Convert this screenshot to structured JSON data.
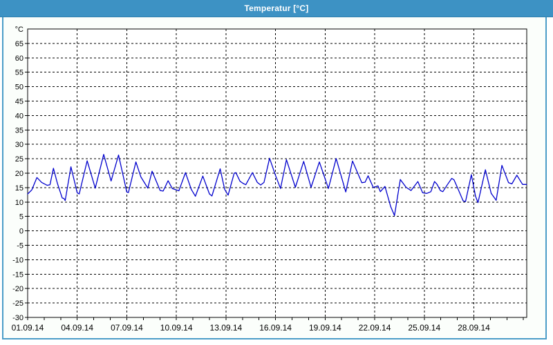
{
  "window": {
    "title": "Temperatur [°C]"
  },
  "colors": {
    "titlebar": "#3d92c4",
    "frame_border": "#4a9cc8",
    "content_background": "#fbfefb",
    "plot_background": "#ffffff",
    "grid": "#000000",
    "axis": "#000000",
    "series_line": "#0000cd",
    "title_text": "#ffffff"
  },
  "chart_data": {
    "type": "line",
    "title": "Temperatur [°C]",
    "y_unit_label": "°C",
    "xlabel": "",
    "ylabel": "",
    "grid": true,
    "legend": "none",
    "ylim": [
      -30,
      70
    ],
    "y_tick_step": 5,
    "y_tick_labels": [
      65,
      60,
      55,
      50,
      45,
      40,
      35,
      30,
      25,
      20,
      15,
      10,
      5,
      0,
      -5,
      -10,
      -15,
      -20,
      -25,
      -30
    ],
    "x_range_days": [
      0,
      30.2
    ],
    "x_day_tick_interval": 1,
    "x_tick_labels": [
      {
        "day": 0,
        "label": "01.09.14"
      },
      {
        "day": 3,
        "label": "04.09.14"
      },
      {
        "day": 6,
        "label": "07.09.14"
      },
      {
        "day": 9,
        "label": "10.09.14"
      },
      {
        "day": 12,
        "label": "13.09.14"
      },
      {
        "day": 15,
        "label": "16.09.14"
      },
      {
        "day": 18,
        "label": "19.09.14"
      },
      {
        "day": 21,
        "label": "22.09.14"
      },
      {
        "day": 24,
        "label": "25.09.14"
      },
      {
        "day": 27,
        "label": "28.09.14"
      }
    ],
    "series": [
      {
        "name": "Temperatur",
        "color": "#0000cd",
        "x_unit": "days_since_01.09.14",
        "y_unit": "°C",
        "points": [
          [
            0.0,
            12.8
          ],
          [
            0.25,
            14.2
          ],
          [
            0.56,
            18.5
          ],
          [
            0.85,
            16.8
          ],
          [
            1.18,
            15.8
          ],
          [
            1.35,
            16.0
          ],
          [
            1.56,
            21.7
          ],
          [
            1.8,
            16.5
          ],
          [
            2.09,
            11.4
          ],
          [
            2.2,
            11.2
          ],
          [
            2.27,
            10.5
          ],
          [
            2.62,
            22.2
          ],
          [
            3.0,
            13.2
          ],
          [
            3.12,
            12.8
          ],
          [
            3.6,
            24.3
          ],
          [
            4.09,
            14.8
          ],
          [
            4.6,
            26.5
          ],
          [
            5.05,
            17.3
          ],
          [
            5.5,
            26.3
          ],
          [
            6.0,
            13.5
          ],
          [
            6.1,
            13.3
          ],
          [
            6.55,
            23.9
          ],
          [
            6.85,
            18.7
          ],
          [
            7.05,
            16.9
          ],
          [
            7.27,
            14.8
          ],
          [
            7.53,
            20.7
          ],
          [
            8.02,
            14.0
          ],
          [
            8.2,
            13.8
          ],
          [
            8.5,
            17.4
          ],
          [
            8.75,
            14.7
          ],
          [
            9.0,
            14.2
          ],
          [
            9.15,
            13.9
          ],
          [
            9.55,
            20.2
          ],
          [
            9.9,
            14.4
          ],
          [
            10.15,
            12.0
          ],
          [
            10.6,
            19.0
          ],
          [
            11.0,
            12.8
          ],
          [
            11.15,
            12.1
          ],
          [
            11.65,
            21.5
          ],
          [
            11.92,
            14.4
          ],
          [
            12.13,
            12.4
          ],
          [
            12.5,
            20.0
          ],
          [
            12.6,
            20.2
          ],
          [
            12.85,
            17.2
          ],
          [
            13.05,
            16.4
          ],
          [
            13.2,
            16.0
          ],
          [
            13.6,
            20.2
          ],
          [
            13.9,
            16.8
          ],
          [
            14.1,
            15.9
          ],
          [
            14.3,
            16.8
          ],
          [
            14.64,
            25.2
          ],
          [
            15.0,
            19.2
          ],
          [
            15.3,
            14.7
          ],
          [
            15.66,
            24.7
          ],
          [
            16.2,
            15.1
          ],
          [
            16.7,
            24.1
          ],
          [
            17.15,
            15.1
          ],
          [
            17.65,
            23.9
          ],
          [
            18.2,
            14.7
          ],
          [
            18.67,
            25.1
          ],
          [
            19.25,
            13.5
          ],
          [
            19.66,
            24.2
          ],
          [
            20.22,
            16.7
          ],
          [
            20.42,
            16.9
          ],
          [
            20.6,
            19.1
          ],
          [
            20.92,
            15.0
          ],
          [
            21.2,
            15.6
          ],
          [
            21.34,
            13.6
          ],
          [
            21.62,
            15.4
          ],
          [
            21.97,
            8.4
          ],
          [
            22.2,
            5.3
          ],
          [
            22.55,
            17.8
          ],
          [
            22.9,
            15.1
          ],
          [
            23.2,
            14.0
          ],
          [
            23.61,
            17.1
          ],
          [
            23.9,
            13.2
          ],
          [
            24.15,
            13.0
          ],
          [
            24.4,
            13.6
          ],
          [
            24.62,
            17.1
          ],
          [
            24.78,
            16.1
          ],
          [
            24.97,
            14.0
          ],
          [
            25.12,
            13.6
          ],
          [
            25.4,
            16.0
          ],
          [
            25.66,
            18.2
          ],
          [
            25.8,
            17.7
          ],
          [
            26.0,
            15.1
          ],
          [
            26.35,
            10.4
          ],
          [
            26.5,
            10.2
          ],
          [
            26.85,
            19.5
          ],
          [
            27.1,
            12.0
          ],
          [
            27.25,
            9.8
          ],
          [
            27.7,
            21.2
          ],
          [
            28.05,
            13.0
          ],
          [
            28.35,
            10.6
          ],
          [
            28.7,
            22.7
          ],
          [
            29.1,
            16.7
          ],
          [
            29.3,
            16.3
          ],
          [
            29.6,
            19.3
          ],
          [
            29.95,
            16.1
          ],
          [
            30.2,
            16.1
          ]
        ]
      }
    ]
  }
}
